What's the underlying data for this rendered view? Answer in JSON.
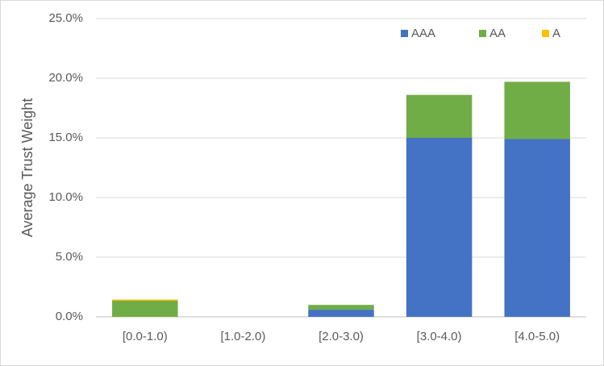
{
  "chart_data": {
    "type": "bar",
    "stacked": true,
    "y_label": "Average Trust Weight",
    "categories": [
      "[0.0-1.0)",
      "[1.0-2.0)",
      "[2.0-3.0)",
      "[3.0-4.0)",
      "[4.0-5.0)"
    ],
    "series": [
      {
        "name": "AAA",
        "color": "#4472c4",
        "values": [
          0,
          0,
          0.6,
          15.0,
          14.9
        ]
      },
      {
        "name": "AA",
        "color": "#70ad47",
        "values": [
          1.35,
          0,
          0.4,
          3.6,
          4.8
        ]
      },
      {
        "name": "A",
        "color": "#ffc000",
        "values": [
          0.1,
          0,
          0,
          0,
          0
        ]
      }
    ],
    "ylim": [
      0,
      25
    ],
    "yticks": [
      {
        "value": 0,
        "label": "0.0%"
      },
      {
        "value": 5,
        "label": "5.0%"
      },
      {
        "value": 10,
        "label": "10.0%"
      },
      {
        "value": 15,
        "label": "15.0%"
      },
      {
        "value": 20,
        "label": "20.0%"
      },
      {
        "value": 25,
        "label": "25.0%"
      }
    ],
    "grid": true,
    "legend": "top-right"
  }
}
